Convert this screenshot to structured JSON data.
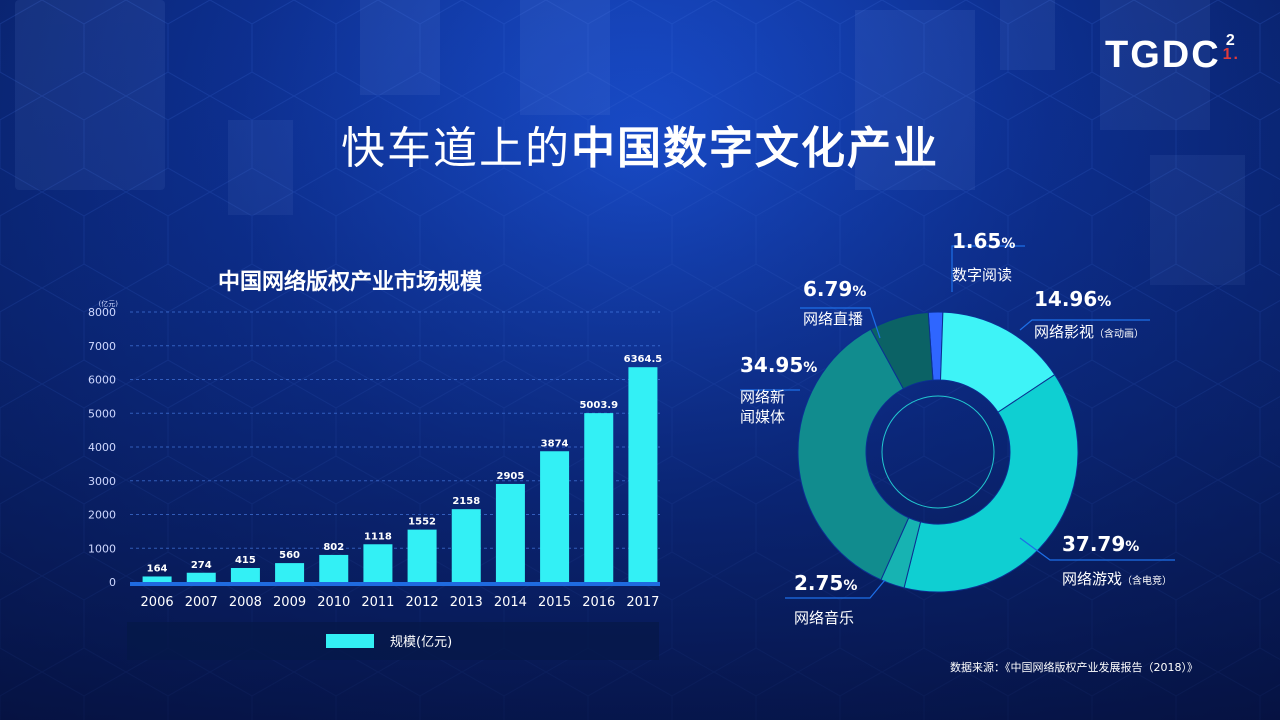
{
  "brand": {
    "name": "TGDC",
    "sup_top": "2",
    "sup_bottom": "1."
  },
  "title": {
    "light": "快车道上的",
    "bold": "中国数字文化产业"
  },
  "source_note": "数据来源：《中国网络版权产业发展报告（2018）》",
  "colors": {
    "bar": "#33f0f5",
    "accent_line": "#1f6be0"
  },
  "chart_data": [
    {
      "type": "bar",
      "title": "中国网络版权产业市场规模",
      "ylabel": "(亿元)",
      "legend": "规模(亿元)",
      "legend_position": "bottom",
      "ylim": [
        0,
        8000
      ],
      "yticks": [
        0,
        1000,
        2000,
        3000,
        4000,
        5000,
        6000,
        7000,
        8000
      ],
      "grid": true,
      "categories": [
        "2006",
        "2007",
        "2008",
        "2009",
        "2010",
        "2011",
        "2012",
        "2013",
        "2014",
        "2015",
        "2016",
        "2017"
      ],
      "values": [
        164,
        274,
        415,
        560,
        802,
        1118,
        1552,
        2158,
        2905,
        3874,
        5003.9,
        6364.5
      ]
    },
    {
      "type": "pie",
      "style": "donut",
      "slices": [
        {
          "name": "数字阅读",
          "percent": "1.65",
          "value": 1.65,
          "color": "#2f66ff"
        },
        {
          "name": "网络影视",
          "note": "（含动画）",
          "percent": "14.96",
          "value": 14.96,
          "color": "#3ef3f7"
        },
        {
          "name": "网络游戏",
          "note": "（含电竞）",
          "percent": "37.79",
          "value": 37.79,
          "color": "#0fcfd2"
        },
        {
          "name": "网络音乐",
          "percent": "2.75",
          "value": 2.75,
          "color": "#17b3b2"
        },
        {
          "name_lines": [
            "网络新",
            "闻媒体"
          ],
          "percent": "34.95",
          "value": 34.95,
          "color": "#118c8e"
        },
        {
          "name": "网络直播",
          "percent": "6.79",
          "value": 6.79,
          "color": "#0b6265"
        }
      ]
    }
  ]
}
